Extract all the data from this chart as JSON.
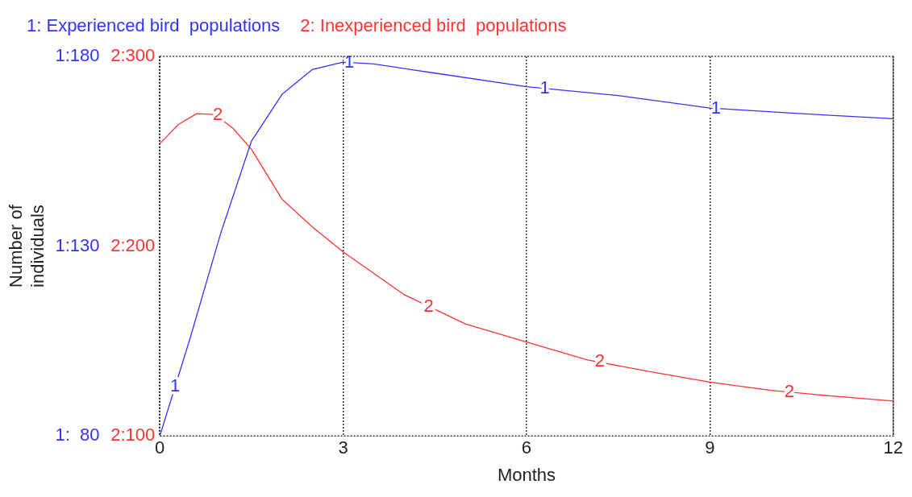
{
  "chart_data": {
    "type": "line",
    "xlabel": "Months",
    "ylabel": "Number of individuals",
    "xlim": [
      0,
      12
    ],
    "xticks": [
      0,
      3,
      6,
      9,
      12
    ],
    "ylim": [
      80,
      180
    ],
    "yticks": [
      80,
      130,
      180
    ],
    "y2lim": [
      100,
      300
    ],
    "y2ticks": [
      100,
      200,
      300
    ],
    "grid": "x",
    "legend": "top",
    "marker": "none",
    "line_style": "solid",
    "series": [
      {
        "name": "1: Experienced bird  populations",
        "color": "#3333ff",
        "x": [
          0,
          0.5,
          1,
          1.5,
          2,
          2.5,
          3,
          3.5,
          4.5,
          6,
          7.5,
          9,
          10.5,
          12
        ],
        "values": [
          80,
          106,
          133.6,
          157.7,
          170,
          176.6,
          178.5,
          178,
          175.6,
          172,
          169.7,
          166.4,
          164.9,
          163.6
        ]
      },
      {
        "name": "2: Inexperienced bird  populations",
        "color": "#ff3333",
        "axis": "y2",
        "x": [
          0,
          0.3,
          0.6,
          0.9,
          1.2,
          1.5,
          2,
          2.5,
          3,
          4,
          5,
          6,
          7,
          8,
          9,
          10,
          11,
          12
        ],
        "values": [
          254,
          264,
          269.8,
          269.4,
          262,
          251,
          224.7,
          210,
          197,
          174.4,
          159,
          149.5,
          140,
          134,
          128.4,
          124,
          121,
          118.4
        ]
      }
    ],
    "annotations": [
      "1:",
      "1:",
      "1:",
      "2:",
      "2:",
      "2:",
      {
        "text": "1",
        "x": 0.25,
        "y": 93
      },
      {
        "text": "1",
        "x": 3.1,
        "y": 178.4
      },
      {
        "text": "1",
        "x": 6.3,
        "y": 171.5
      },
      {
        "text": "1",
        "x": 9.1,
        "y": 166.3
      },
      {
        "text": "2",
        "x": 0.95,
        "y": 164.5
      },
      {
        "text": "2",
        "x": 4.4,
        "y": 114
      },
      {
        "text": "2",
        "x": 7.2,
        "y": 99.5
      },
      {
        "text": "2",
        "x": 10.3,
        "y": 91.5
      }
    ]
  }
}
